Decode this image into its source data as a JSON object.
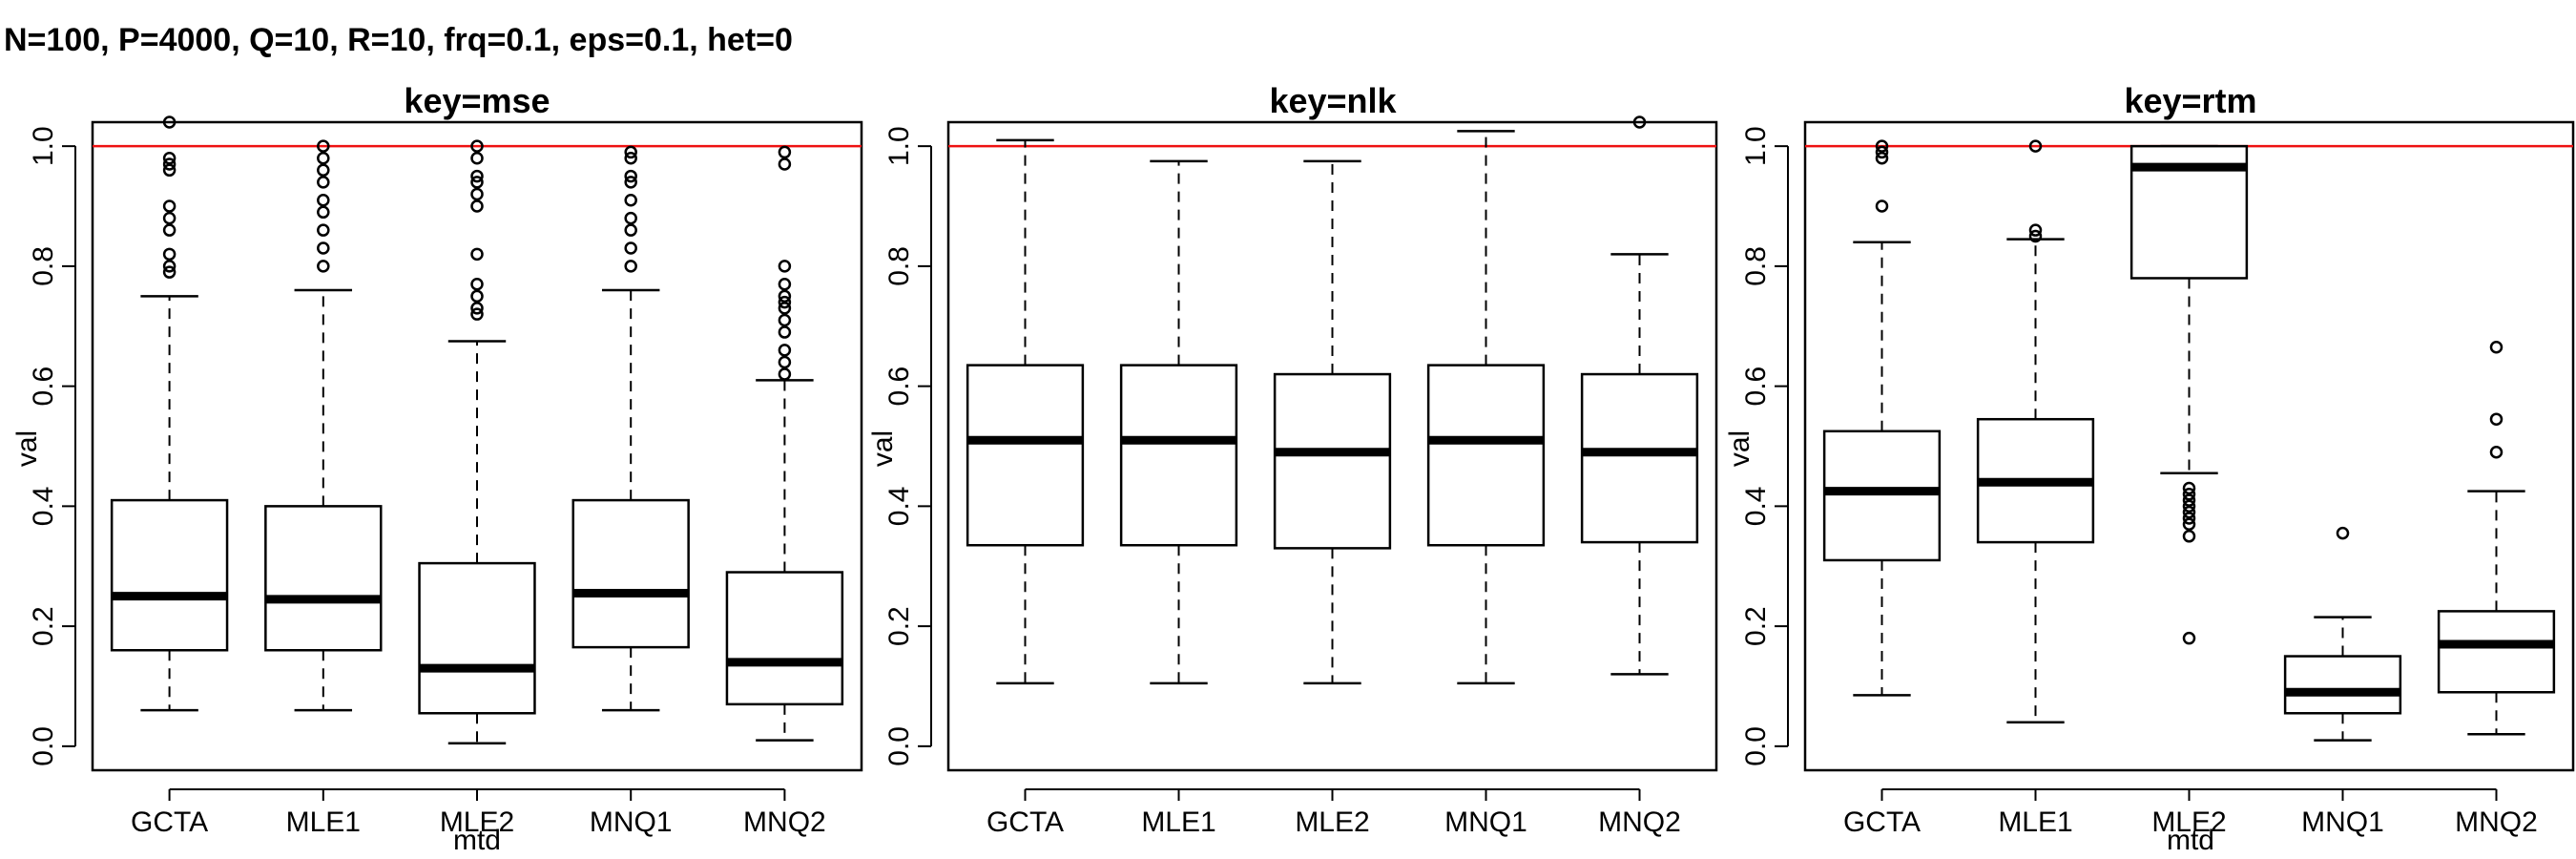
{
  "figure": {
    "title": "N=100, P=4000, Q=10, R=10, frq=0.1, eps=0.1, het=0"
  },
  "chart_data": [
    {
      "type": "boxplot",
      "title": "key=mse",
      "xlabel": "mtd",
      "ylabel": "val",
      "categories": [
        "GCTA",
        "MLE1",
        "MLE2",
        "MNQ1",
        "MNQ2"
      ],
      "ylim": [
        -0.04,
        1.04
      ],
      "yticks": [
        0.0,
        0.2,
        0.4,
        0.6,
        0.8,
        1.0
      ],
      "yticklabels": [
        "0.0",
        "0.2",
        "0.4",
        "0.6",
        "0.8",
        "1.0"
      ],
      "reference_line": {
        "y": 1.0,
        "color": "#ee1111"
      },
      "grid": false,
      "boxes": [
        {
          "whisker_low": 0.06,
          "q1": 0.16,
          "median": 0.25,
          "q3": 0.41,
          "whisker_high": 0.75,
          "outliers": [
            0.79,
            0.8,
            0.82,
            0.86,
            0.88,
            0.9,
            0.96,
            0.97,
            0.98,
            1.04
          ]
        },
        {
          "whisker_low": 0.06,
          "q1": 0.16,
          "median": 0.245,
          "q3": 0.4,
          "whisker_high": 0.76,
          "outliers": [
            0.8,
            0.83,
            0.86,
            0.89,
            0.91,
            0.94,
            0.96,
            0.98,
            1.0
          ]
        },
        {
          "whisker_low": 0.005,
          "q1": 0.055,
          "median": 0.13,
          "q3": 0.305,
          "whisker_high": 0.675,
          "outliers": [
            0.72,
            0.73,
            0.75,
            0.77,
            0.82,
            0.9,
            0.92,
            0.94,
            0.95,
            0.98,
            1.0
          ]
        },
        {
          "whisker_low": 0.06,
          "q1": 0.165,
          "median": 0.255,
          "q3": 0.41,
          "whisker_high": 0.76,
          "outliers": [
            0.8,
            0.83,
            0.86,
            0.88,
            0.91,
            0.94,
            0.95,
            0.98,
            0.99
          ]
        },
        {
          "whisker_low": 0.01,
          "q1": 0.07,
          "median": 0.14,
          "q3": 0.29,
          "whisker_high": 0.61,
          "outliers": [
            0.62,
            0.64,
            0.66,
            0.69,
            0.71,
            0.73,
            0.74,
            0.75,
            0.77,
            0.8,
            0.97,
            0.99
          ]
        }
      ]
    },
    {
      "type": "boxplot",
      "title": "key=nlk",
      "xlabel": "",
      "ylabel": "val",
      "categories": [
        "GCTA",
        "MLE1",
        "MLE2",
        "MNQ1",
        "MNQ2"
      ],
      "ylim": [
        -0.04,
        1.04
      ],
      "yticks": [
        0.0,
        0.2,
        0.4,
        0.6,
        0.8,
        1.0
      ],
      "yticklabels": [
        "0.0",
        "0.2",
        "0.4",
        "0.6",
        "0.8",
        "1.0"
      ],
      "reference_line": {
        "y": 1.0,
        "color": "#ee1111"
      },
      "grid": false,
      "boxes": [
        {
          "whisker_low": 0.105,
          "q1": 0.335,
          "median": 0.51,
          "q3": 0.635,
          "whisker_high": 1.01,
          "outliers": []
        },
        {
          "whisker_low": 0.105,
          "q1": 0.335,
          "median": 0.51,
          "q3": 0.635,
          "whisker_high": 0.975,
          "outliers": []
        },
        {
          "whisker_low": 0.105,
          "q1": 0.33,
          "median": 0.49,
          "q3": 0.62,
          "whisker_high": 0.975,
          "outliers": []
        },
        {
          "whisker_low": 0.105,
          "q1": 0.335,
          "median": 0.51,
          "q3": 0.635,
          "whisker_high": 1.025,
          "outliers": []
        },
        {
          "whisker_low": 0.12,
          "q1": 0.34,
          "median": 0.49,
          "q3": 0.62,
          "whisker_high": 0.82,
          "outliers": [
            1.04
          ]
        }
      ]
    },
    {
      "type": "boxplot",
      "title": "key=rtm",
      "xlabel": "mtd",
      "ylabel": "val",
      "categories": [
        "GCTA",
        "MLE1",
        "MLE2",
        "MNQ1",
        "MNQ2"
      ],
      "ylim": [
        -0.04,
        1.04
      ],
      "yticks": [
        0.0,
        0.2,
        0.4,
        0.6,
        0.8,
        1.0
      ],
      "yticklabels": [
        "0.0",
        "0.2",
        "0.4",
        "0.6",
        "0.8",
        "1.0"
      ],
      "reference_line": {
        "y": 1.0,
        "color": "#ee1111"
      },
      "grid": false,
      "boxes": [
        {
          "whisker_low": 0.085,
          "q1": 0.31,
          "median": 0.425,
          "q3": 0.525,
          "whisker_high": 0.84,
          "outliers": [
            0.9,
            0.98,
            0.99,
            1.0
          ]
        },
        {
          "whisker_low": 0.04,
          "q1": 0.34,
          "median": 0.44,
          "q3": 0.545,
          "whisker_high": 0.845,
          "outliers": [
            0.85,
            0.86,
            1.0
          ]
        },
        {
          "whisker_low": 0.455,
          "q1": 0.78,
          "median": 0.965,
          "q3": 1.0,
          "whisker_high": 1.0,
          "outliers": [
            0.18,
            0.35,
            0.37,
            0.38,
            0.39,
            0.4,
            0.41,
            0.42,
            0.43
          ]
        },
        {
          "whisker_low": 0.01,
          "q1": 0.055,
          "median": 0.09,
          "q3": 0.15,
          "whisker_high": 0.215,
          "outliers": [
            0.355
          ]
        },
        {
          "whisker_low": 0.02,
          "q1": 0.09,
          "median": 0.17,
          "q3": 0.225,
          "whisker_high": 0.425,
          "outliers": [
            0.49,
            0.545,
            0.665
          ]
        }
      ]
    }
  ]
}
